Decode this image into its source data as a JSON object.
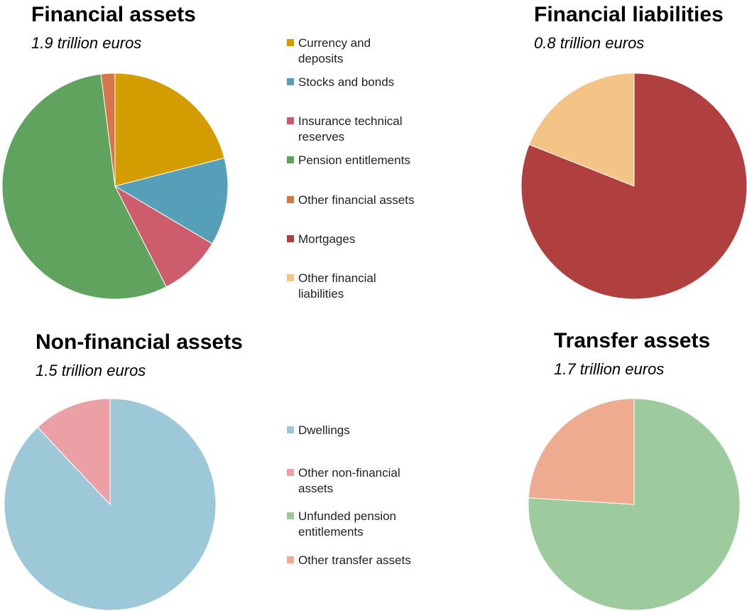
{
  "chart_data": [
    {
      "type": "pie",
      "title": "Financial assets",
      "subtitle": "1.9 trillion euros",
      "categories": [
        "Currency and deposits",
        "Stocks and bonds",
        "Insurance technical reserves",
        "Pension entitlements",
        "Other financial assets"
      ],
      "values": [
        21,
        12.5,
        9,
        55.5,
        2
      ],
      "colors": [
        "#d39c00",
        "#55a0b8",
        "#cd5c6c",
        "#5fa35f",
        "#d4774a"
      ]
    },
    {
      "type": "pie",
      "title": "Financial liabilities",
      "subtitle": "0.8 trillion euros",
      "categories": [
        "Mortgages",
        "Other financial liabilities"
      ],
      "values": [
        81,
        19
      ],
      "colors": [
        "#b04040",
        "#f3c486"
      ]
    },
    {
      "type": "pie",
      "title": "Non-financial assets",
      "subtitle": "1.5 trillion euros",
      "categories": [
        "Dwellings",
        "Other non-financial assets"
      ],
      "values": [
        88,
        12
      ],
      "colors": [
        "#9cc8d8",
        "#eba0a6"
      ]
    },
    {
      "type": "pie",
      "title": "Transfer assets",
      "subtitle": "1.7 trillion euros",
      "categories": [
        "Unfunded pension entitlements",
        "Other transfer assets"
      ],
      "values": [
        76,
        24
      ],
      "colors": [
        "#9ecb9e",
        "#eeab90"
      ]
    }
  ]
}
